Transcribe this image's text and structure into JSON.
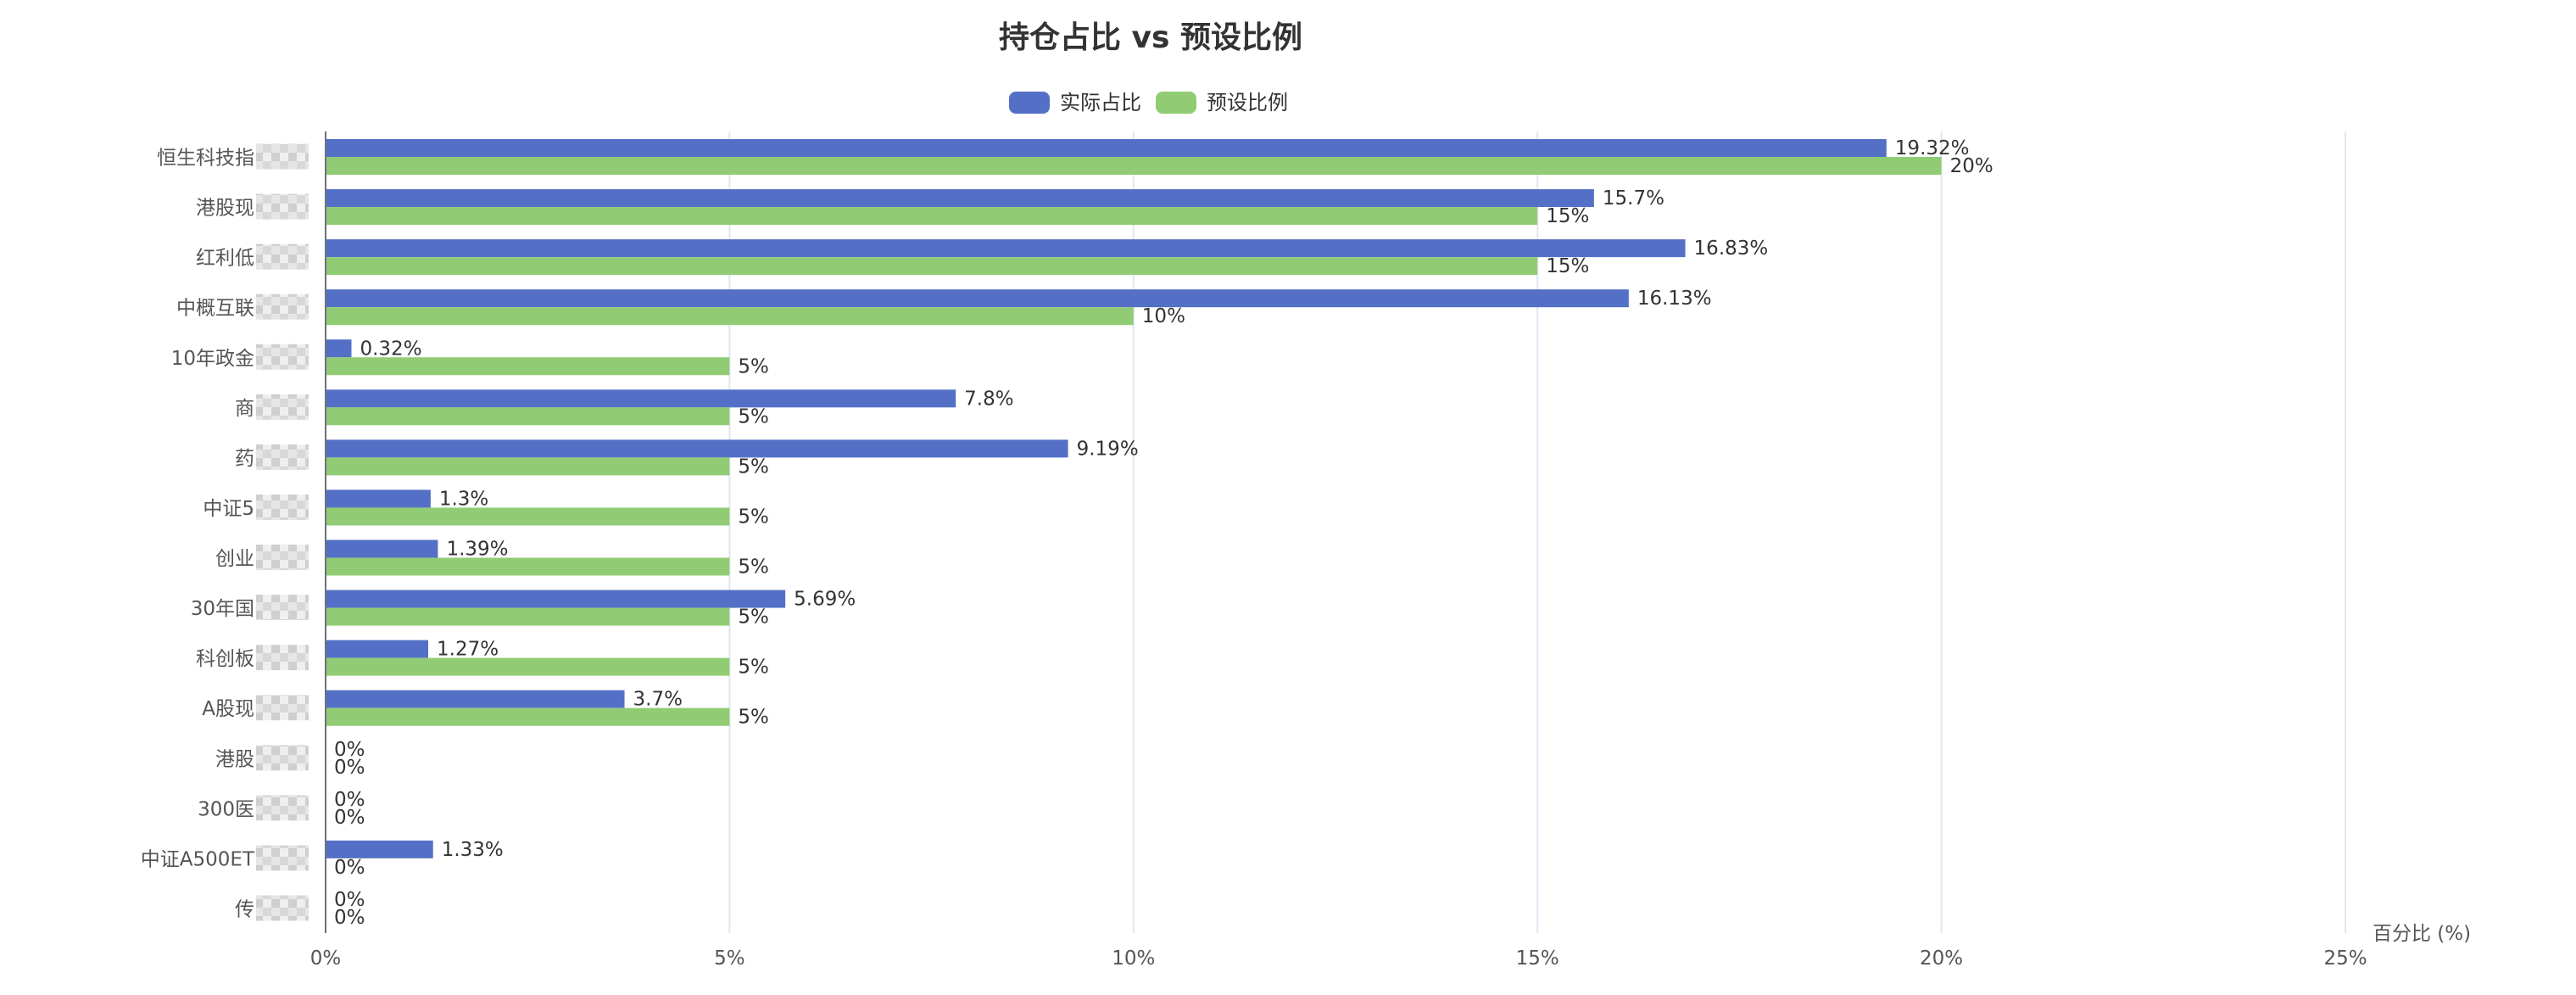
{
  "chart_data": {
    "type": "bar",
    "orientation": "horizontal",
    "title": "持仓占比 vs 预设比例",
    "xlabel": "百分比 (%)",
    "ylabel": "",
    "xlim": [
      0,
      25
    ],
    "x_ticks": [
      0,
      5,
      10,
      15,
      20,
      25
    ],
    "x_tick_labels": [
      "0%",
      "5%",
      "10%",
      "15%",
      "20%",
      "25%"
    ],
    "grid": true,
    "legend_position": "top-center",
    "categories": [
      "恒生科技指",
      "港股现",
      "红利低",
      "中概互联",
      "10年政金",
      "商",
      "药",
      "中证5",
      "创业",
      "30年国",
      "科创板",
      "A股现",
      "港股",
      "300医",
      "中证A500ET",
      "传"
    ],
    "series": [
      {
        "name": "实际占比",
        "color": "#5470c6",
        "values": [
          19.32,
          15.7,
          16.83,
          16.13,
          0.32,
          7.8,
          9.19,
          1.3,
          1.39,
          5.69,
          1.27,
          3.7,
          0,
          0,
          1.33,
          0
        ],
        "labels": [
          "19.32%",
          "15.7%",
          "16.83%",
          "16.13%",
          "0.32%",
          "7.8%",
          "9.19%",
          "1.3%",
          "1.39%",
          "5.69%",
          "1.27%",
          "3.7%",
          "0%",
          "0%",
          "1.33%",
          "0%"
        ]
      },
      {
        "name": "预设比例",
        "color": "#91cc75",
        "values": [
          20,
          15,
          15,
          10,
          5,
          5,
          5,
          5,
          5,
          5,
          5,
          5,
          0,
          0,
          0,
          0
        ],
        "labels": [
          "20%",
          "15%",
          "15%",
          "10%",
          "5%",
          "5%",
          "5%",
          "5%",
          "5%",
          "5%",
          "5%",
          "5%",
          "0%",
          "0%",
          "0%",
          "0%"
        ]
      }
    ]
  }
}
